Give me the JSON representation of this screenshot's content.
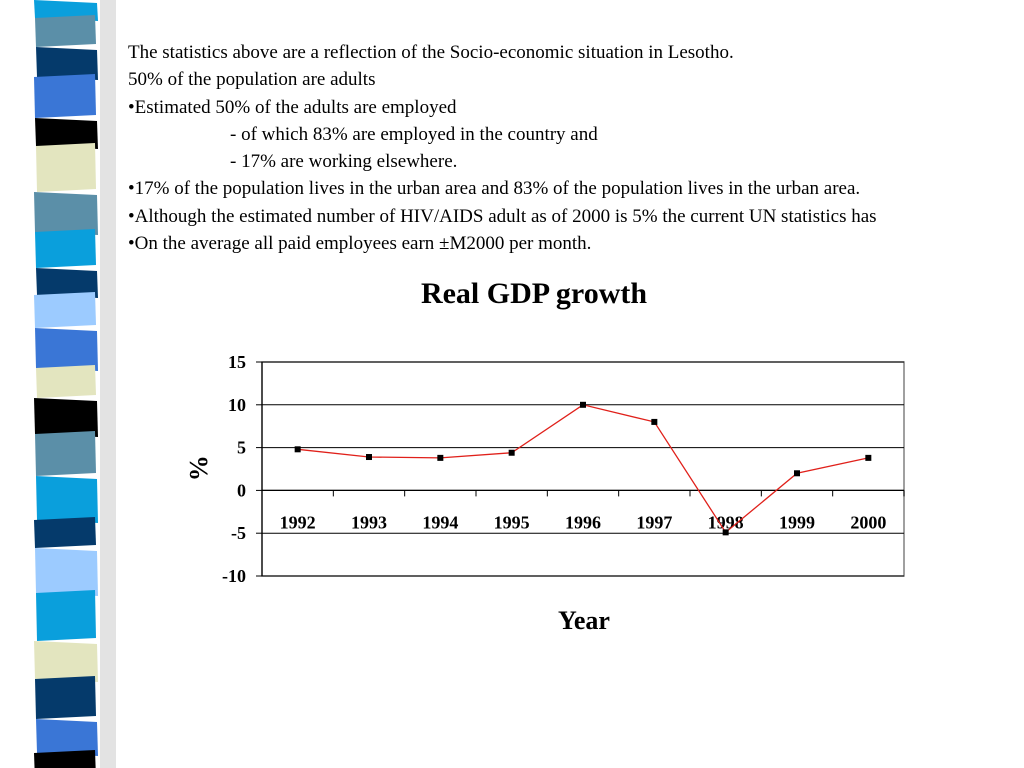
{
  "slide": {
    "lines": [
      "The statistics above are a reflection of the Socio-economic situation in Lesotho.",
      "50% of the population are adults",
      "•Estimated 50% of the adults are employed",
      "- of which 83% are employed in the country and",
      "- 17% are working elsewhere.",
      "•17% of the population lives in the urban area and 83% of the population lives in the urban area.",
      "•Although the estimated number of HIV/AIDS adult as of 2000 is 5% the current UN statistics has",
      "•On the average all paid employees earn ±M2000 per month."
    ]
  },
  "colors": {
    "line": "#e0201a",
    "marker": "#000000",
    "grid": "#000000",
    "sidebar": [
      "#0a9fdc",
      "#5b8fa8",
      "#053a6b",
      "#3a76d6",
      "#000000",
      "#e3e5bf",
      "#9ccbff"
    ]
  },
  "chart_data": {
    "type": "line",
    "title": "Real GDP growth",
    "xlabel": "Year",
    "ylabel": "%",
    "categories": [
      "1992",
      "1993",
      "1994",
      "1995",
      "1996",
      "1997",
      "1998",
      "1999",
      "2000"
    ],
    "values": [
      4.8,
      3.9,
      3.8,
      4.4,
      10.0,
      8.0,
      -4.9,
      2.0,
      3.8
    ],
    "ylim": [
      -10,
      15
    ],
    "yticks": [
      "-10",
      "-5",
      "0",
      "5",
      "10",
      "15"
    ],
    "grid": "horizontal",
    "legend": "none",
    "marker": "square"
  }
}
